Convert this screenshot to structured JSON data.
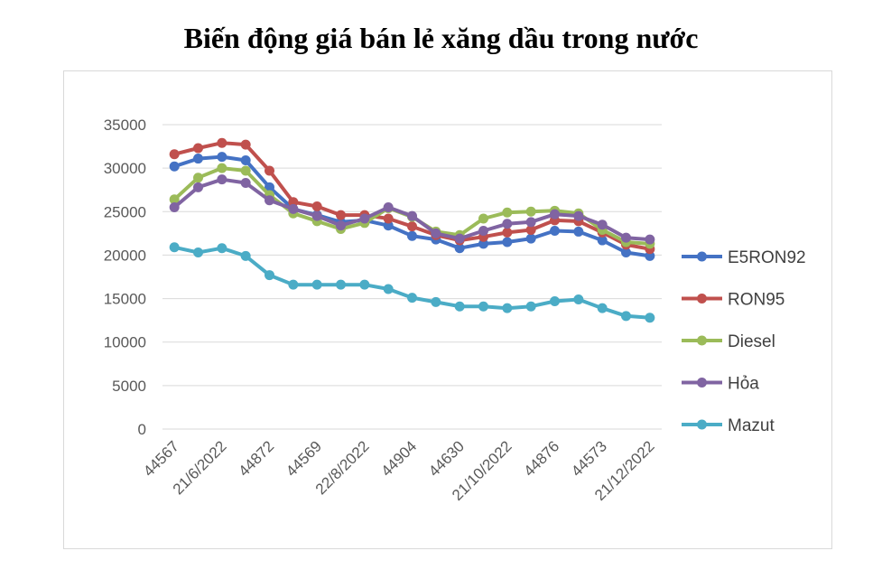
{
  "chart_data": {
    "type": "line",
    "title": "Biến động giá bán lẻ xăng dầu trong nước",
    "xlabel": "",
    "ylabel": "",
    "ylim": [
      0,
      35000
    ],
    "yticks": [
      0,
      5000,
      10000,
      15000,
      20000,
      25000,
      30000,
      35000
    ],
    "grid": true,
    "legend_position": "right",
    "x_tick_labels": [
      "44567",
      "21/6/2022",
      "44872",
      "44569",
      "22/8/2022",
      "44904",
      "44630",
      "21/10/2022",
      "44876",
      "44573",
      "21/12/2022"
    ],
    "x_tick_every": 2,
    "n_points": 21,
    "series": [
      {
        "name": "E5RON92",
        "color": "#4472c4",
        "values": [
          30200,
          31100,
          31300,
          30900,
          27800,
          25300,
          24600,
          23800,
          24000,
          23400,
          22200,
          21800,
          20800,
          21300,
          21500,
          21900,
          22800,
          22700,
          21700,
          20300,
          19900
        ]
      },
      {
        "name": "RON95",
        "color": "#c0504d",
        "values": [
          31600,
          32300,
          32900,
          32700,
          29700,
          26100,
          25600,
          24600,
          24600,
          24200,
          23300,
          22300,
          21700,
          22100,
          22600,
          22900,
          24000,
          23900,
          22600,
          21200,
          20700
        ]
      },
      {
        "name": "Diesel",
        "color": "#9bbb59",
        "values": [
          26400,
          28900,
          30000,
          29700,
          26900,
          24800,
          23900,
          23000,
          23700,
          25400,
          24400,
          22700,
          22300,
          24200,
          24900,
          25000,
          25100,
          24800,
          22900,
          21500,
          21300
        ]
      },
      {
        "name": "Hỏa",
        "color": "#8064a2",
        "values": [
          25500,
          27800,
          28700,
          28300,
          26300,
          25300,
          24500,
          23400,
          24200,
          25500,
          24500,
          22500,
          21900,
          22800,
          23600,
          23800,
          24700,
          24500,
          23500,
          22000,
          21800
        ]
      },
      {
        "name": "Mazut",
        "color": "#4bacc6",
        "values": [
          20900,
          20300,
          20800,
          19900,
          17700,
          16600,
          16600,
          16600,
          16600,
          16100,
          15100,
          14600,
          14100,
          14100,
          13900,
          14100,
          14700,
          14900,
          13900,
          13000,
          12800
        ]
      }
    ]
  }
}
